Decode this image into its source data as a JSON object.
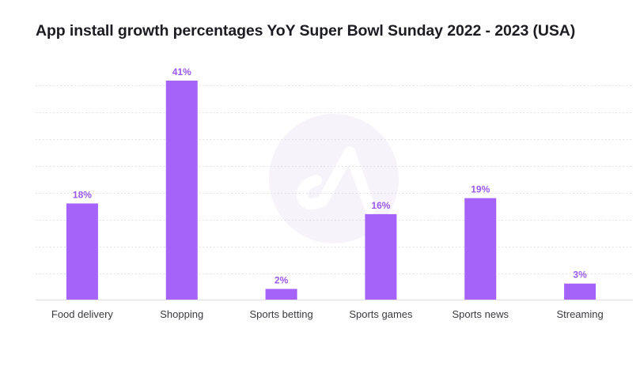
{
  "chart_data": {
    "type": "bar",
    "title": "App install growth percentages YoY Super Bowl Sunday 2022 - 2023 (USA)",
    "xlabel": "",
    "ylabel": "",
    "categories": [
      "Food delivery",
      "Shopping",
      "Sports betting",
      "Sports games",
      "Sports news",
      "Streaming"
    ],
    "values": [
      18,
      41,
      2,
      16,
      19,
      3
    ],
    "data_labels": [
      "18%",
      "41%",
      "2%",
      "16%",
      "19%",
      "3%"
    ],
    "ylim": [
      0,
      42
    ],
    "grid": true,
    "legend": "none",
    "colors": {
      "bar": "#a663f9",
      "label": "#9b59f0",
      "grid": "#d9d9de",
      "axis": "#e3e3e8",
      "watermark": "#f6f3fa"
    }
  }
}
